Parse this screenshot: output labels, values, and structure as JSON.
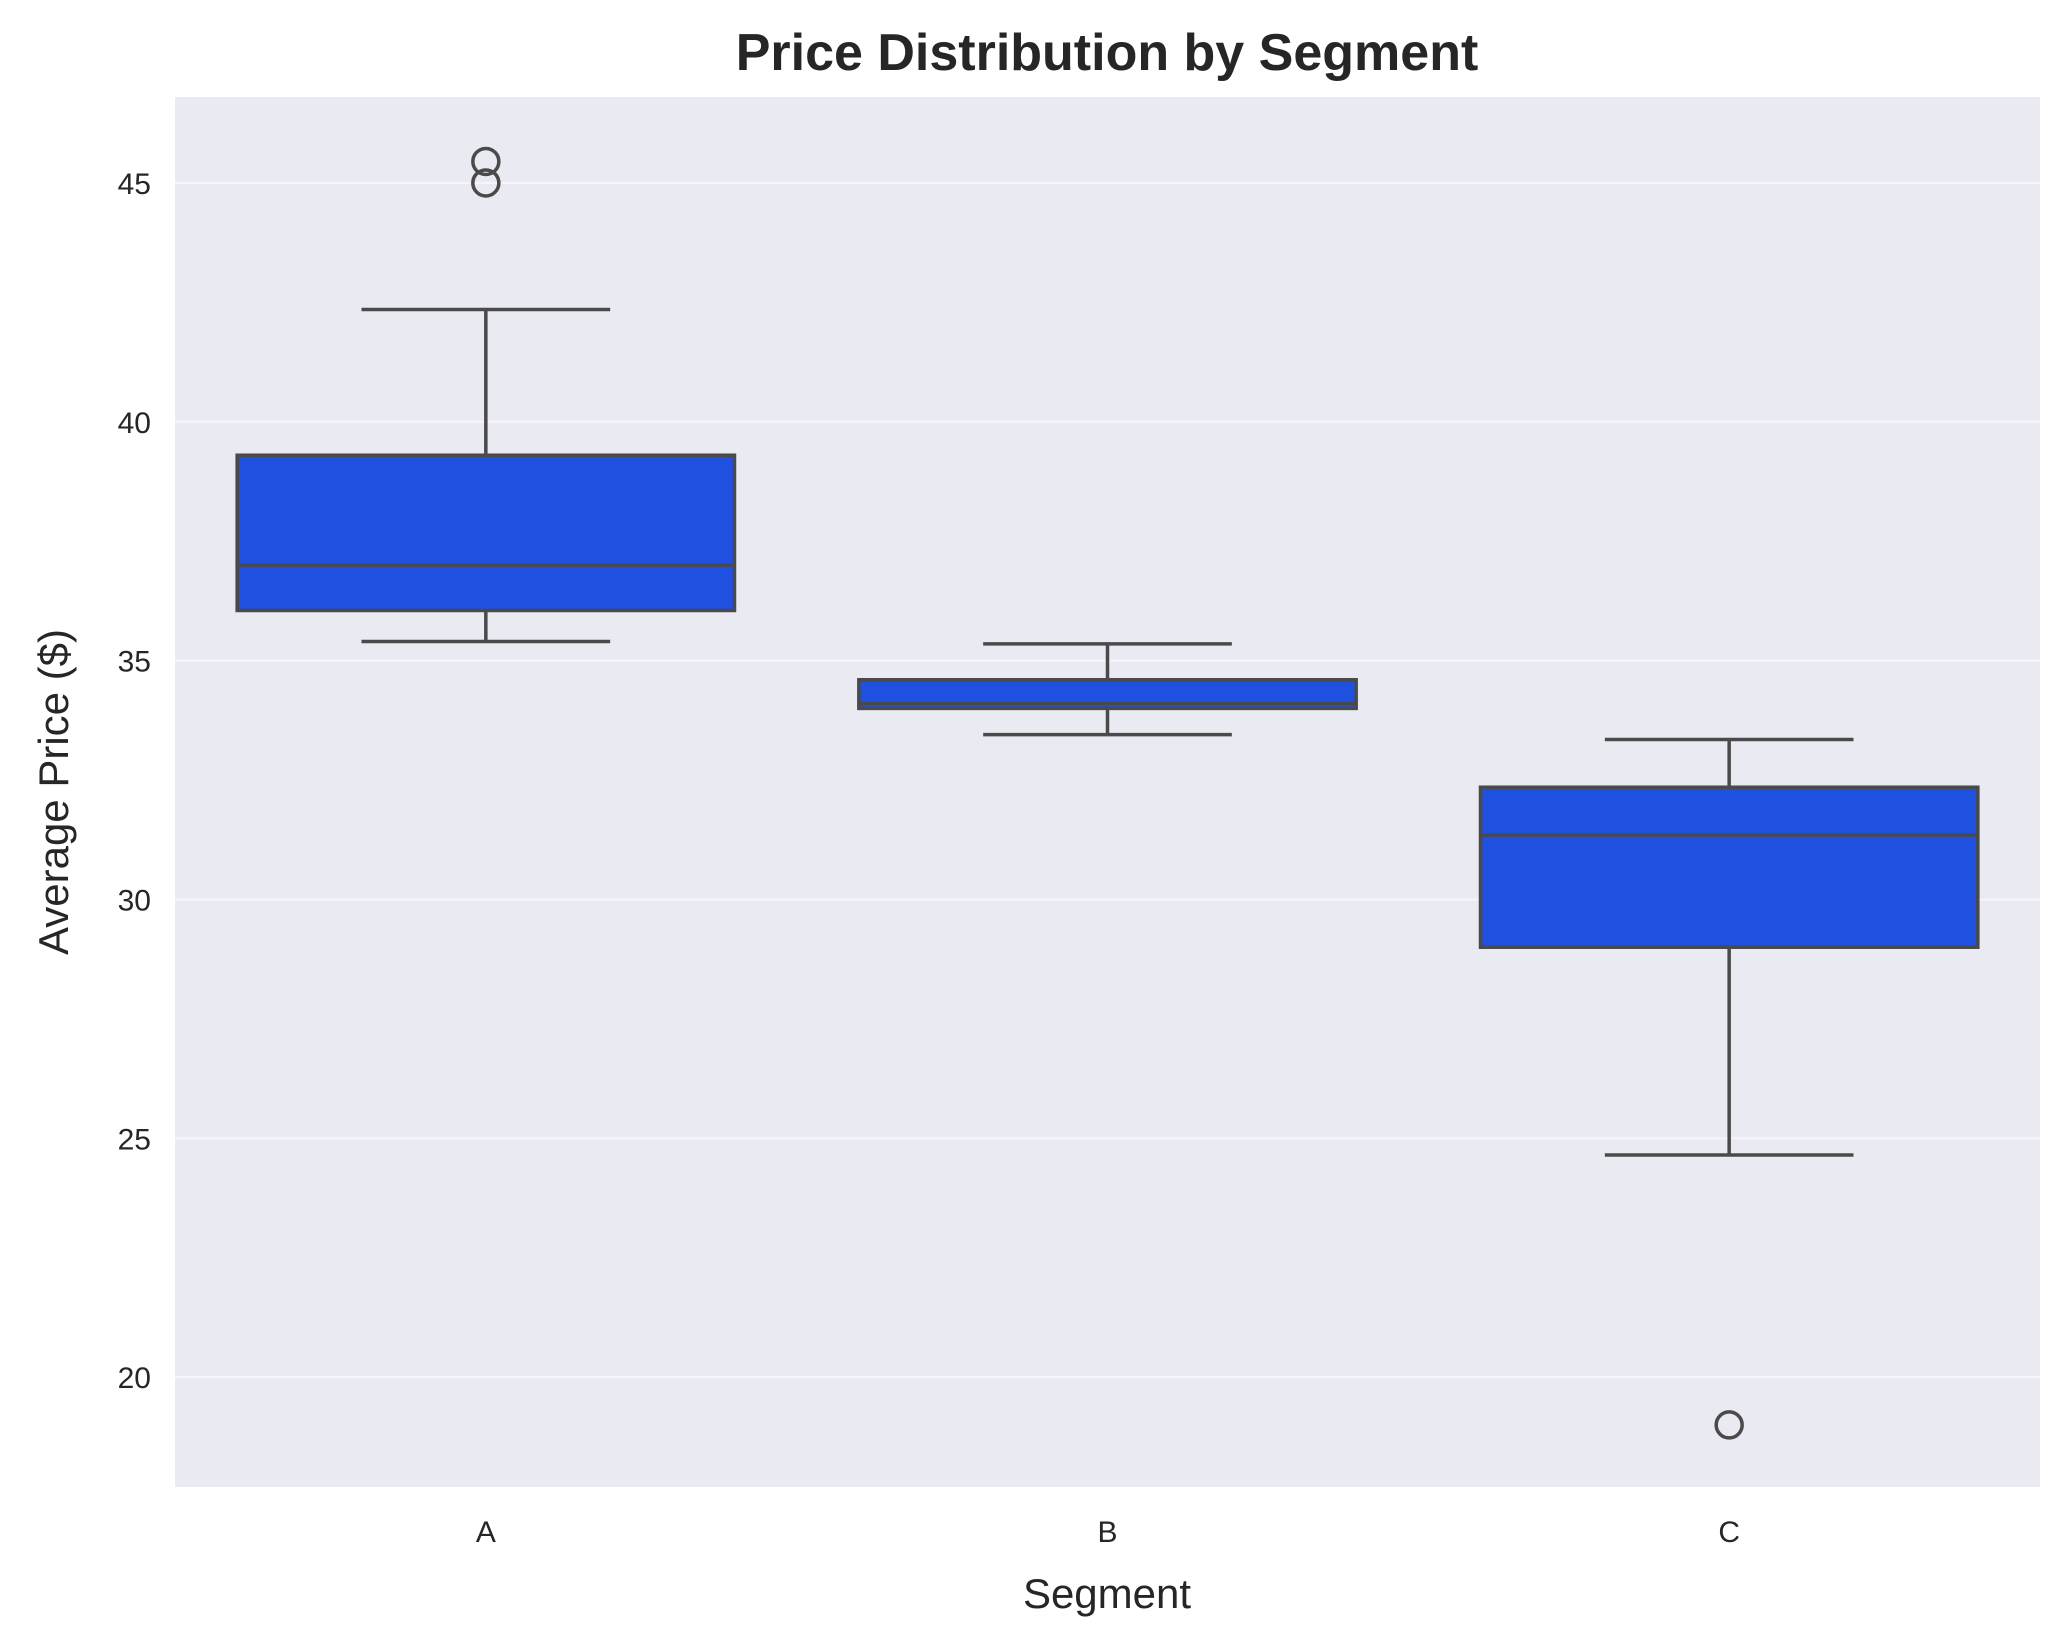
{
  "chart_data": {
    "type": "box",
    "title": "Price Distribution by Segment",
    "xlabel": "Segment",
    "ylabel": "Average Price ($)",
    "categories": [
      "A",
      "B",
      "C"
    ],
    "ylim": [
      17.7,
      46.8
    ],
    "yticks": [
      "20",
      "25",
      "30",
      "35",
      "40",
      "45"
    ],
    "grid": true,
    "box_color": "#2050e0",
    "line_color": "#4a4a4a",
    "background_color": "#eaeaf2",
    "grid_color": "#f6f6fa",
    "boxes": [
      {
        "category": "A",
        "whisker_low": 35.4,
        "q1": 36.05,
        "median": 37.0,
        "q3": 39.3,
        "whisker_high": 42.35,
        "outliers": [
          45.0,
          45.45
        ]
      },
      {
        "category": "B",
        "whisker_low": 33.45,
        "q1": 34.0,
        "median": 34.1,
        "q3": 34.6,
        "whisker_high": 35.35,
        "outliers": []
      },
      {
        "category": "C",
        "whisker_low": 24.65,
        "q1": 29.0,
        "median": 31.35,
        "q3": 32.35,
        "whisker_high": 33.35,
        "outliers": [
          19.0
        ]
      }
    ]
  }
}
